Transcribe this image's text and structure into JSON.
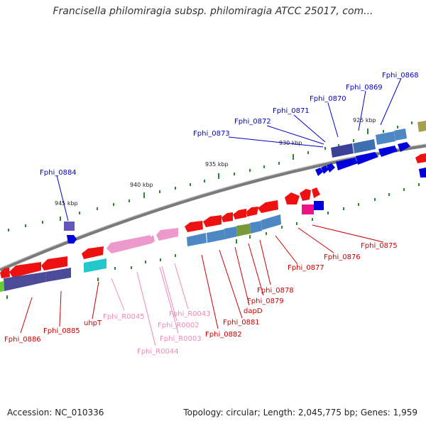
{
  "title": "Francisella philomiragia subsp. philomiragia ATCC 25017, com...",
  "footer": {
    "accession": "Accession: NC_010336",
    "summary": "Topology: circular; Length: 2,045,775 bp; Genes: 1,959"
  },
  "scale_labels": [
    "925 kbp",
    "930 kbp",
    "935 kbp",
    "940 kbp",
    "945 kbp"
  ],
  "colors": {
    "backbone": "#808080",
    "forward_label": "#0000cc",
    "reverse_label": "#cc0000",
    "rna_label": "#ee88bb",
    "tick": "#2a8a2a"
  },
  "gene_labels": {
    "fphi_0868": "Fphi_0868",
    "fphi_0869": "Fphi_0869",
    "fphi_0870": "Fphi_0870",
    "fphi_0871": "Fphi_0871",
    "fphi_0872": "Fphi_0872",
    "fphi_0873": "Fphi_0873",
    "fphi_0884": "Fphi_0884",
    "fphi_0875": "Fphi_0875",
    "fphi_0876": "Fphi_0876",
    "fphi_0877": "Fphi_0877",
    "fphi_0878": "Fphi_0878",
    "fphi_0879": "Fphi_0879",
    "dapd": "dapD",
    "fphi_0881": "Fphi_0881",
    "fphi_0882": "Fphi_0882",
    "fphi_0885": "Fphi_0885",
    "fphi_0886": "Fphi_0886",
    "uhpt": "uhpT",
    "fphi_r0043": "Fphi_R0043",
    "fphi_r0045": "Fphi_R0045",
    "fphi_r0002": "Fphi_R0002",
    "fphi_r0003": "Fphi_R0003",
    "fphi_r0044": "Fphi_R0044"
  }
}
